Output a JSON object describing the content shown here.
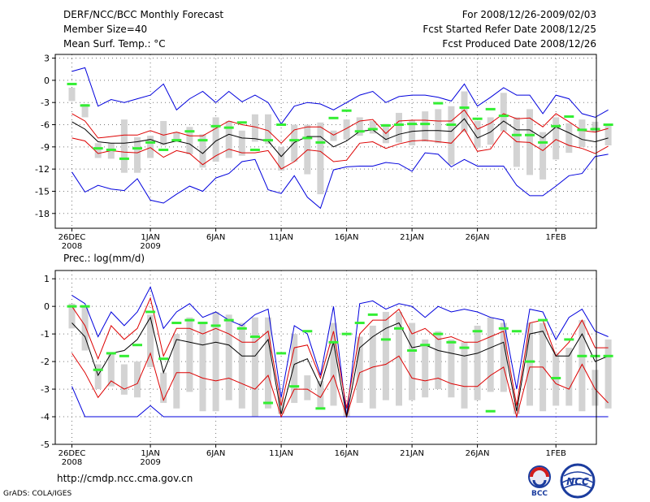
{
  "header": {
    "title": "DERF/NCC/BCC Monthly Forecast",
    "member_size": "Member Size=40",
    "variable": "Mean Surf. Temp.: °C",
    "period": "For 2008/12/26-2009/02/03",
    "started": "Fcst Started Refer Date 2008/12/25",
    "produced": "Fcst Produced Date 2008/12/26"
  },
  "footer": {
    "url": "http://cmdp.ncc.cma.gov.cn",
    "grads": "GrADS: COLA/IGES",
    "logo_bcc": "BCC",
    "logo_ncc": "NCC"
  },
  "colors": {
    "envelope": "#0000dd",
    "quartiles": "#dd0000",
    "mean": "#000000",
    "box": "#d3d3d3",
    "median": "#33ee33",
    "grid": "#777777"
  },
  "chart_data": [
    {
      "type": "box",
      "title": "Mean Surf. Temp.: °C",
      "xticks": [
        {
          "day": 0,
          "label": "26DEC",
          "sub": "2008"
        },
        {
          "day": 6,
          "label": "1JAN",
          "sub": "2009"
        },
        {
          "day": 11,
          "label": "6JAN",
          "sub": ""
        },
        {
          "day": 16,
          "label": "11JAN",
          "sub": ""
        },
        {
          "day": 21,
          "label": "16JAN",
          "sub": ""
        },
        {
          "day": 26,
          "label": "21JAN",
          "sub": ""
        },
        {
          "day": 31,
          "label": "26JAN",
          "sub": ""
        },
        {
          "day": 37,
          "label": "1FEB",
          "sub": ""
        }
      ],
      "yticks": [
        3,
        0,
        -3,
        -6,
        -9,
        -12,
        -15,
        -18
      ],
      "ylim": [
        -20,
        3.5
      ],
      "max": [
        1.2,
        1.7,
        -3.5,
        -2.6,
        -3.0,
        -2.5,
        -2.0,
        -0.5,
        -4.0,
        -2.5,
        -1.5,
        -3.0,
        -1.5,
        -2.9,
        -2.0,
        -3.0,
        -5.9,
        -3.5,
        -3.0,
        -3.2,
        -4.0,
        -3.0,
        -2.0,
        -1.5,
        -3.0,
        -2.2,
        -2.0,
        -2.0,
        -2.3,
        -2.8,
        -0.5,
        -3.5,
        -2.3,
        -1.0,
        -2.0,
        -2.0,
        -4.5,
        -2.0,
        -2.5,
        -4.5,
        -5.0,
        -4.0
      ],
      "q3": [
        -4.5,
        -5.5,
        -7.8,
        -7.6,
        -7.4,
        -7.4,
        -6.8,
        -7.4,
        -7.0,
        -7.5,
        -7.5,
        -6.5,
        -5.5,
        -6.0,
        -6.3,
        -6.8,
        -8.5,
        -6.7,
        -6.3,
        -6.3,
        -7.4,
        -6.5,
        -5.5,
        -5.3,
        -7.2,
        -5.5,
        -5.4,
        -5.4,
        -5.5,
        -5.5,
        -4.0,
        -6.6,
        -5.8,
        -4.5,
        -5.2,
        -5.1,
        -6.3,
        -4.5,
        -5.6,
        -6.8,
        -7.0,
        -6.5
      ],
      "mean": [
        -5.6,
        -6.6,
        -8.3,
        -8.5,
        -8.5,
        -8.3,
        -8.0,
        -8.6,
        -8.2,
        -8.6,
        -9.9,
        -8.2,
        -7.3,
        -7.8,
        -7.9,
        -8.2,
        -10.3,
        -8.4,
        -7.6,
        -7.6,
        -9.0,
        -8.2,
        -6.9,
        -6.7,
        -8.0,
        -7.3,
        -6.9,
        -6.8,
        -6.8,
        -6.9,
        -5.2,
        -7.8,
        -7.0,
        -5.5,
        -6.7,
        -6.7,
        -7.8,
        -6.3,
        -7.1,
        -8.0,
        -8.3,
        -7.8
      ],
      "q1": [
        -7.8,
        -8.2,
        -9.9,
        -9.5,
        -9.7,
        -9.8,
        -9.1,
        -10.4,
        -9.5,
        -9.9,
        -11.4,
        -10.2,
        -9.3,
        -9.8,
        -9.8,
        -9.5,
        -12.0,
        -11.0,
        -9.4,
        -9.6,
        -11.0,
        -10.8,
        -8.5,
        -8.3,
        -9.2,
        -8.6,
        -8.2,
        -8.1,
        -8.3,
        -8.5,
        -6.6,
        -9.6,
        -9.3,
        -6.8,
        -8.3,
        -8.4,
        -9.5,
        -8.0,
        -8.8,
        -9.2,
        -9.9,
        -8.9
      ],
      "min": [
        -12.4,
        -15.1,
        -14.2,
        -14.7,
        -14.9,
        -13.3,
        -16.2,
        -16.6,
        -15.4,
        -14.3,
        -15.0,
        -13.2,
        -12.6,
        -11.0,
        -10.7,
        -14.8,
        -15.3,
        -12.9,
        -15.8,
        -17.3,
        -12.1,
        -11.7,
        -11.6,
        -11.6,
        -11.1,
        -11.3,
        -12.3,
        -9.8,
        -10.0,
        -11.7,
        -10.7,
        -11.6,
        -11.6,
        -11.6,
        -14.2,
        -15.6,
        -15.6,
        -14.3,
        -12.9,
        -12.6,
        -10.3,
        -10.0
      ],
      "box_top": [
        -1.0,
        -3.2,
        -8.5,
        -8.5,
        -5.3,
        -7.7,
        -7.5,
        -5.5,
        -7.0,
        -6.3,
        -7.3,
        -5.0,
        -5.5,
        -6.8,
        -4.6,
        -4.6,
        -9.0,
        -6.0,
        -6.0,
        -5.7,
        -6.8,
        -5.3,
        -5.0,
        -5.5,
        -5.9,
        -4.4,
        -5.4,
        -4.2,
        -3.9,
        -3.5,
        -1.5,
        -5.5,
        -5.0,
        -1.7,
        -5.0,
        -3.9,
        -7.0,
        -5.0,
        -5.8,
        -5.3,
        -5.6,
        -5.9
      ],
      "box_bottom": [
        -2.8,
        -5.0,
        -10.5,
        -10.6,
        -12.5,
        -12.5,
        -10.5,
        -8.8,
        -8.3,
        -10.0,
        -11.8,
        -11.0,
        -10.5,
        -10.2,
        -8.3,
        -8.6,
        -12.2,
        -11.0,
        -12.7,
        -15.4,
        -8.2,
        -8.0,
        -7.5,
        -7.2,
        -8.5,
        -8.4,
        -8.8,
        -8.3,
        -8.5,
        -11.4,
        -7.0,
        -9.1,
        -8.7,
        -6.9,
        -11.7,
        -12.8,
        -13.4,
        -10.7,
        -9.8,
        -9.0,
        -7.0,
        -8.8
      ],
      "median": [
        -0.5,
        -3.4,
        -9.2,
        -9.4,
        -10.6,
        -9.2,
        -8.4,
        -9.4,
        -8.1,
        -6.9,
        -8.1,
        -6.2,
        -6.4,
        -5.7,
        -9.4,
        -8.1,
        -6.0,
        -8.1,
        -7.8,
        -8.4,
        -5.1,
        -4.1,
        -6.9,
        -6.6,
        -6.1,
        -6.0,
        -5.9,
        -5.9,
        -3.1,
        -6.0,
        -3.7,
        -5.2,
        -3.9,
        -4.8,
        -7.4,
        -7.4,
        -8.4,
        -6.2,
        -4.9,
        -6.7,
        -6.6,
        -6.0
      ]
    },
    {
      "type": "box",
      "title": "Prec.: log(mm/d)",
      "xticks": [
        {
          "day": 0,
          "label": "26DEC",
          "sub": "2008"
        },
        {
          "day": 6,
          "label": "1JAN",
          "sub": "2009"
        },
        {
          "day": 11,
          "label": "6JAN",
          "sub": ""
        },
        {
          "day": 16,
          "label": "11JAN",
          "sub": ""
        },
        {
          "day": 21,
          "label": "16JAN",
          "sub": ""
        },
        {
          "day": 26,
          "label": "21JAN",
          "sub": ""
        },
        {
          "day": 31,
          "label": "26JAN",
          "sub": ""
        },
        {
          "day": 37,
          "label": "1FEB",
          "sub": ""
        }
      ],
      "yticks": [
        1,
        0,
        -1,
        -2,
        -3,
        -4,
        -5
      ],
      "ylim": [
        -5,
        1.3
      ],
      "max": [
        0.4,
        0.1,
        -1.1,
        -0.2,
        -0.7,
        -0.2,
        0.7,
        -0.8,
        -0.2,
        0.1,
        -0.4,
        -0.2,
        -0.5,
        -0.7,
        -0.3,
        -0.1,
        -3.3,
        -0.7,
        -1.0,
        -2.5,
        0.0,
        -4.0,
        0.1,
        0.2,
        -0.1,
        0.1,
        0.0,
        -0.4,
        0.0,
        -0.2,
        -0.1,
        -0.2,
        -0.4,
        -0.5,
        -3.0,
        -0.1,
        -0.2,
        -1.2,
        -0.4,
        -0.1,
        -0.9,
        -1.1
      ],
      "q3": [
        0.0,
        -0.7,
        -1.9,
        -0.7,
        -1.2,
        -0.8,
        0.3,
        -1.8,
        -0.8,
        -0.8,
        -1.0,
        -0.8,
        -1.0,
        -1.3,
        -1.3,
        -0.9,
        -3.6,
        -1.5,
        -1.4,
        -2.6,
        -0.9,
        -3.7,
        -1.0,
        -0.5,
        -0.5,
        -0.1,
        -1.0,
        -0.8,
        -1.2,
        -1.1,
        -1.3,
        -1.3,
        -1.1,
        -0.9,
        -3.6,
        -0.6,
        -0.5,
        -1.8,
        -1.3,
        -0.5,
        -1.5,
        -1.5
      ],
      "mean": [
        -0.6,
        -1.1,
        -2.5,
        -1.7,
        -1.6,
        -1.2,
        -0.4,
        -2.4,
        -1.2,
        -1.3,
        -1.4,
        -1.3,
        -1.4,
        -1.8,
        -1.8,
        -1.2,
        -3.9,
        -2.1,
        -1.9,
        -2.9,
        -1.3,
        -4.0,
        -1.5,
        -1.1,
        -0.8,
        -0.6,
        -1.5,
        -1.4,
        -1.6,
        -1.7,
        -1.8,
        -1.7,
        -1.5,
        -1.3,
        -3.8,
        -1.0,
        -0.9,
        -1.8,
        -1.8,
        -1.0,
        -2.0,
        -1.8
      ],
      "q1": [
        -1.7,
        -2.4,
        -3.3,
        -2.7,
        -3.0,
        -2.8,
        -1.7,
        -3.4,
        -2.4,
        -2.4,
        -2.6,
        -2.7,
        -2.6,
        -2.8,
        -3.0,
        -2.5,
        -4.0,
        -3.0,
        -3.0,
        -3.3,
        -2.5,
        -4.0,
        -2.4,
        -2.2,
        -2.1,
        -1.8,
        -2.6,
        -2.7,
        -2.6,
        -2.8,
        -2.9,
        -2.9,
        -2.5,
        -2.2,
        -4.0,
        -2.2,
        -2.2,
        -2.8,
        -3.0,
        -2.1,
        -3.0,
        -3.5
      ],
      "min": [
        -2.9,
        -4.0,
        -4.0,
        -4.0,
        -4.0,
        -4.0,
        -3.6,
        -4.0,
        -4.0,
        -4.0,
        -4.0,
        -4.0,
        -4.0,
        -4.0,
        -4.0,
        -4.0,
        -4.0,
        -4.0,
        -4.0,
        -4.0,
        -4.0,
        -4.0,
        -4.0,
        -4.0,
        -4.0,
        -4.0,
        -4.0,
        -4.0,
        -4.0,
        -4.0,
        -4.0,
        -4.0,
        -4.0,
        -4.0,
        -4.0,
        -4.0,
        -4.0,
        -4.0,
        -4.0,
        -4.0,
        -4.0,
        -4.0
      ],
      "box_top": [
        0.1,
        0.0,
        -2.1,
        -1.7,
        -2.1,
        -2.0,
        -0.3,
        -2.4,
        -1.0,
        -0.4,
        -0.6,
        -0.2,
        -0.3,
        -0.6,
        -0.4,
        -0.4,
        -3.3,
        -1.0,
        -2.5,
        -2.7,
        -0.6,
        -3.6,
        -1.1,
        -0.7,
        -0.2,
        -0.2,
        -0.6,
        -1.2,
        -0.9,
        -1.2,
        -1.3,
        -0.7,
        -0.4,
        -0.6,
        -3.5,
        -0.6,
        -0.6,
        -1.7,
        -1.5,
        -0.5,
        -2.3,
        -1.2
      ],
      "box_bottom": [
        -0.8,
        -1.6,
        -3.0,
        -2.9,
        -3.2,
        -3.3,
        -2.2,
        -3.5,
        -3.7,
        -3.1,
        -3.8,
        -3.8,
        -3.4,
        -3.7,
        -4.0,
        -3.7,
        -3.9,
        -3.5,
        -3.4,
        -3.7,
        -3.6,
        -4.0,
        -3.5,
        -3.7,
        -3.4,
        -3.6,
        -3.4,
        -3.3,
        -3.0,
        -3.3,
        -3.7,
        -3.4,
        -3.1,
        -3.1,
        -3.9,
        -3.6,
        -3.8,
        -3.6,
        -3.6,
        -3.8,
        -3.6,
        -3.7
      ],
      "median": [
        0.0,
        0.0,
        -2.3,
        -1.7,
        -1.8,
        -1.4,
        -0.2,
        -1.9,
        -0.6,
        -0.5,
        -0.6,
        -0.7,
        -0.5,
        -0.8,
        -1.1,
        -3.5,
        -1.7,
        -2.9,
        -0.9,
        -3.7,
        -1.3,
        -1.0,
        -0.6,
        -0.3,
        -1.2,
        -0.8,
        -1.6,
        -1.4,
        -1.0,
        -1.3,
        -1.5,
        -0.9,
        -3.8,
        -0.8,
        -0.9,
        -2.0,
        -0.5,
        -2.6,
        -1.2,
        -1.8,
        -1.8,
        -1.8
      ]
    }
  ],
  "panels_labels": {
    "top_label": "Mean Surf. Temp.: °C",
    "bottom_label": "Prec.: log(mm/d)"
  }
}
